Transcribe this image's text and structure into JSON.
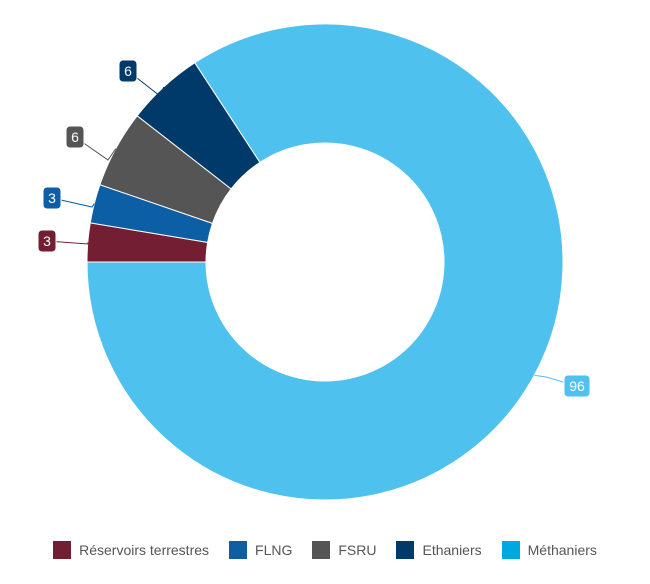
{
  "chart_data": {
    "type": "pie",
    "subtype": "donut",
    "title": "",
    "categories": [
      "Réservoirs terrestres",
      "FLNG",
      "FSRU",
      "Ethaniers",
      "Méthaniers"
    ],
    "values": [
      3,
      3,
      6,
      6,
      96
    ],
    "colors": [
      "#741e33",
      "#0d5fa5",
      "#555555",
      "#003a6b",
      "#4fc1ee"
    ],
    "legend_swatch_colors": [
      "#741e33",
      "#0d5fa5",
      "#555555",
      "#003a6b",
      "#00a8e1"
    ],
    "data_labels": [
      "3",
      "3",
      "6",
      "6",
      "96"
    ],
    "legend_position": "bottom"
  }
}
